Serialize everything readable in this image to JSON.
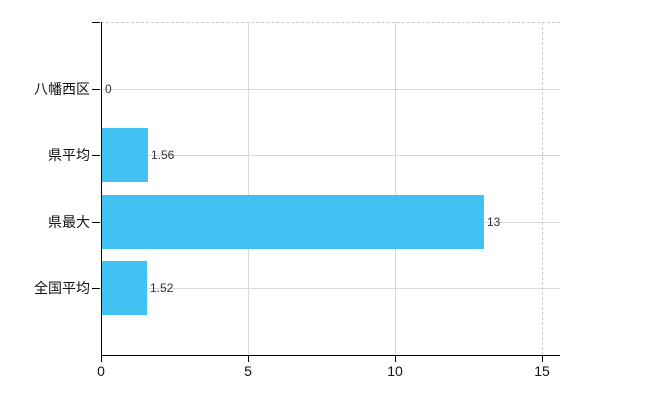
{
  "chart_data": {
    "type": "bar",
    "orientation": "horizontal",
    "title": "",
    "categories": [
      "八幡西区",
      "県平均",
      "県最大",
      "全国平均"
    ],
    "values": [
      0,
      1.56,
      13,
      1.52
    ],
    "value_labels": [
      "0",
      "1.56",
      "13",
      "1.52"
    ],
    "x_ticks": [
      0,
      5,
      10,
      15
    ],
    "x_tick_labels": [
      "0",
      "5",
      "10",
      "15"
    ],
    "xlim": [
      0,
      15.6
    ],
    "grid": true,
    "legend": "none",
    "bar_color": "#41c2f3",
    "axis_color": "#000000",
    "grid_color": "#d9d9d9",
    "dashed_border_color": "#c9c9c9",
    "text_color": "#111111",
    "value_label_color": "#333333",
    "background_color": "#ffffff"
  }
}
